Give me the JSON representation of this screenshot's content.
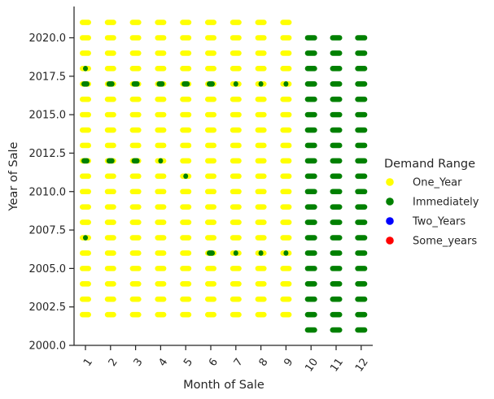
{
  "chart_data": {
    "type": "scatter",
    "title": "",
    "xlabel": "Month of Sale",
    "ylabel": "Year of Sale",
    "x_categories": [
      1,
      2,
      3,
      4,
      5,
      6,
      7,
      8,
      9,
      10,
      11,
      12
    ],
    "ylim": [
      2000.0,
      2022.0
    ],
    "yticks": [
      "2000.0",
      "2002.5",
      "2005.0",
      "2007.5",
      "2010.0",
      "2012.5",
      "2015.0",
      "2017.5",
      "2020.0"
    ],
    "grid": false,
    "legend": {
      "title": "Demand Range",
      "placement": "right",
      "entries": [
        {
          "name": "One_Year",
          "color": "#ffff00"
        },
        {
          "name": "Immediately",
          "color": "#008000"
        },
        {
          "name": "Two_Years",
          "color": "#0000ff"
        },
        {
          "name": "Some_years",
          "color": "#ff0000"
        }
      ]
    },
    "series": [
      {
        "name": "One_Year",
        "color": "#ffff00",
        "points_description": "every year 2002-2021 for months 1-9",
        "months": [
          1,
          2,
          3,
          4,
          5,
          6,
          7,
          8,
          9
        ],
        "years": [
          2002,
          2003,
          2004,
          2005,
          2006,
          2007,
          2008,
          2009,
          2010,
          2011,
          2012,
          2013,
          2014,
          2015,
          2016,
          2017,
          2018,
          2019,
          2020,
          2021
        ]
      },
      {
        "name": "Immediately",
        "color": "#008000",
        "grid_block": {
          "months": [
            10,
            11,
            12
          ],
          "years": [
            2001,
            2002,
            2003,
            2004,
            2005,
            2006,
            2007,
            2008,
            2009,
            2010,
            2011,
            2012,
            2013,
            2014,
            2015,
            2016,
            2017,
            2018,
            2019,
            2020
          ]
        },
        "points": [
          [
            1,
            2007
          ],
          [
            1,
            2012
          ],
          [
            1,
            2017
          ],
          [
            1,
            2018
          ],
          [
            2,
            2012
          ],
          [
            2,
            2017
          ],
          [
            3,
            2012
          ],
          [
            3,
            2017
          ],
          [
            4,
            2012
          ],
          [
            4,
            2017
          ],
          [
            5,
            2011
          ],
          [
            5,
            2017
          ],
          [
            6,
            2006
          ],
          [
            6,
            2017
          ],
          [
            7,
            2006
          ],
          [
            7,
            2017
          ],
          [
            8,
            2006
          ],
          [
            8,
            2017
          ],
          [
            9,
            2006
          ],
          [
            9,
            2017
          ]
        ]
      },
      {
        "name": "Two_Years",
        "color": "#0000ff",
        "points": []
      },
      {
        "name": "Some_years",
        "color": "#ff0000",
        "points": []
      }
    ]
  }
}
